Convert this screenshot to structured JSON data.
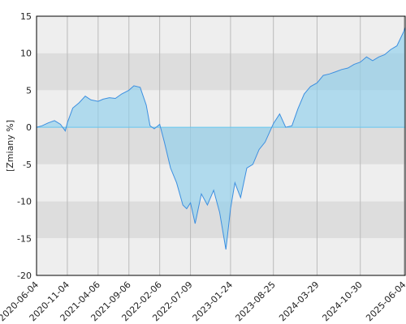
{
  "chart_data": {
    "type": "area",
    "title": "",
    "xlabel": "",
    "ylabel": "[Zmiany %]",
    "xlim": [
      "2020-06-04",
      "2025-06-10"
    ],
    "ylim": [
      -20,
      15
    ],
    "y_ticks": [
      15,
      10,
      5,
      0,
      -5,
      -10,
      -15,
      -20
    ],
    "x_ticks": [
      "2020-06-04",
      "2020-11-04",
      "2021-04-06",
      "2021-09-06",
      "2022-02-06",
      "2022-07-09",
      "2023-01-24",
      "2023-08-25",
      "2024-03-29",
      "2024-10-30",
      "2025-06-04"
    ],
    "grid": true,
    "legend": "none",
    "colors": {
      "line": "#3c8fe0",
      "fill": "#8fd0ec",
      "band_light": "#eeeeee",
      "band_dark": "#dddddd",
      "zero_line": "#66c6ee",
      "grid": "#bbbbbb"
    },
    "series": [
      {
        "x": [
          "2020-06-04",
          "2020-07-01",
          "2020-08-01",
          "2020-09-01",
          "2020-10-01",
          "2020-10-25",
          "2020-11-04",
          "2020-12-01",
          "2021-01-01",
          "2021-02-01",
          "2021-03-01",
          "2021-04-06",
          "2021-05-01",
          "2021-06-01",
          "2021-07-01",
          "2021-08-01",
          "2021-09-06",
          "2021-10-01",
          "2021-11-01",
          "2021-12-01",
          "2021-12-20",
          "2022-01-10",
          "2022-02-06",
          "2022-03-01",
          "2022-04-01",
          "2022-05-01",
          "2022-06-01",
          "2022-06-20",
          "2022-07-09",
          "2022-08-01",
          "2022-09-01",
          "2022-10-01",
          "2022-11-01",
          "2022-12-01",
          "2023-01-01",
          "2023-01-24",
          "2023-02-15",
          "2023-03-15",
          "2023-04-15",
          "2023-05-15",
          "2023-06-15",
          "2023-07-15",
          "2023-08-25",
          "2023-09-25",
          "2023-10-25",
          "2023-11-25",
          "2023-12-25",
          "2024-01-25",
          "2024-02-25",
          "2024-03-29",
          "2024-04-29",
          "2024-05-29",
          "2024-06-29",
          "2024-07-29",
          "2024-08-29",
          "2024-09-29",
          "2024-10-30",
          "2024-11-30",
          "2024-12-30",
          "2025-01-30",
          "2025-02-28",
          "2025-03-30",
          "2025-04-30",
          "2025-06-04",
          "2025-06-10"
        ],
        "y": [
          0.0,
          0.2,
          0.6,
          0.9,
          0.4,
          -0.5,
          0.6,
          2.6,
          3.3,
          4.2,
          3.7,
          3.5,
          3.8,
          4.0,
          3.9,
          4.5,
          5.0,
          5.6,
          5.4,
          3.0,
          0.2,
          -0.2,
          0.4,
          -2.0,
          -5.5,
          -7.5,
          -10.5,
          -11.0,
          -10.2,
          -13.0,
          -9.0,
          -10.5,
          -8.5,
          -11.5,
          -16.5,
          -11.0,
          -7.5,
          -9.5,
          -5.5,
          -5.0,
          -3.0,
          -2.0,
          0.5,
          1.8,
          0.0,
          0.2,
          2.5,
          4.5,
          5.5,
          6.0,
          7.0,
          7.2,
          7.5,
          7.8,
          8.0,
          8.5,
          8.8,
          9.5,
          9.0,
          9.5,
          9.8,
          10.5,
          11.0,
          13.0,
          13.5
        ]
      }
    ]
  }
}
